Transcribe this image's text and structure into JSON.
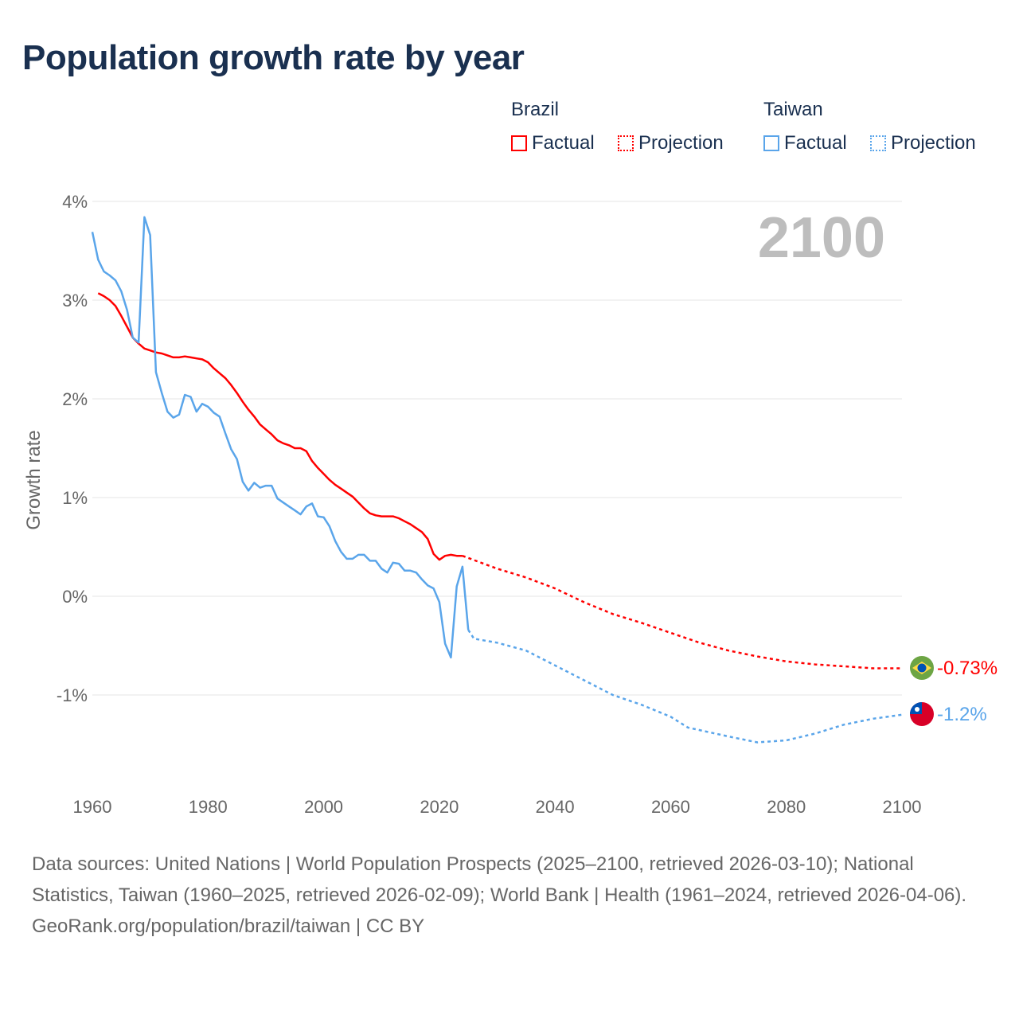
{
  "title": "Population growth rate by year",
  "legend": {
    "groups": [
      {
        "country": "Brazil",
        "factual": "Factual",
        "projection": "Projection",
        "color": "#ff0000"
      },
      {
        "country": "Taiwan",
        "factual": "Factual",
        "projection": "Projection",
        "color": "#5aa5ea"
      }
    ]
  },
  "year_label": "2100",
  "footer": {
    "sources": "Data sources: United Nations | World Population Prospects (2025–2100, retrieved 2026-03-10); National Statistics, Taiwan (1960–2025, retrieved 2026-02-09); World Bank | Health (1961–2024, retrieved 2026-04-06).",
    "credit": "GeoRank.org/population/brazil/taiwan | CC BY"
  },
  "chart_data": {
    "type": "line",
    "title": "Population growth rate by year",
    "xlabel": "",
    "ylabel": "Growth rate",
    "xlim": [
      1960,
      2100
    ],
    "ylim": [
      -1.8,
      4
    ],
    "xticks": [
      "1960",
      "1980",
      "2000",
      "2020",
      "2040",
      "2060",
      "2080",
      "2100"
    ],
    "xtick_values": [
      1960,
      1980,
      2000,
      2020,
      2040,
      2060,
      2080,
      2100
    ],
    "yticks": [
      "4%",
      "3%",
      "2%",
      "1%",
      "0%",
      "-1%"
    ],
    "ytick_values": [
      4,
      3,
      2,
      1,
      0,
      -1
    ],
    "grid": true,
    "series": [
      {
        "name": "Brazil",
        "color": "#ff0000",
        "end_label": "-0.73%",
        "factual": {
          "x": [
            1961,
            1962,
            1963,
            1964,
            1965,
            1966,
            1967,
            1968,
            1969,
            1970,
            1971,
            1972,
            1973,
            1974,
            1975,
            1976,
            1977,
            1978,
            1979,
            1980,
            1981,
            1982,
            1983,
            1984,
            1985,
            1986,
            1987,
            1988,
            1989,
            1990,
            1991,
            1992,
            1993,
            1994,
            1995,
            1996,
            1997,
            1998,
            1999,
            2000,
            2001,
            2002,
            2003,
            2004,
            2005,
            2006,
            2007,
            2008,
            2009,
            2010,
            2011,
            2012,
            2013,
            2014,
            2015,
            2016,
            2017,
            2018,
            2019,
            2020,
            2021,
            2022,
            2023,
            2024
          ],
          "y": [
            3.07,
            3.04,
            3.0,
            2.94,
            2.84,
            2.73,
            2.62,
            2.56,
            2.51,
            2.49,
            2.47,
            2.46,
            2.44,
            2.42,
            2.42,
            2.43,
            2.42,
            2.41,
            2.4,
            2.37,
            2.31,
            2.26,
            2.21,
            2.14,
            2.06,
            1.97,
            1.89,
            1.82,
            1.74,
            1.69,
            1.64,
            1.58,
            1.55,
            1.53,
            1.5,
            1.5,
            1.47,
            1.37,
            1.3,
            1.24,
            1.18,
            1.13,
            1.09,
            1.05,
            1.01,
            0.95,
            0.89,
            0.84,
            0.82,
            0.81,
            0.81,
            0.81,
            0.79,
            0.76,
            0.73,
            0.69,
            0.65,
            0.58,
            0.43,
            0.37,
            0.41,
            0.42,
            0.41,
            0.41
          ]
        },
        "projection": {
          "x": [
            2024,
            2030,
            2035,
            2040,
            2045,
            2050,
            2055,
            2060,
            2065,
            2070,
            2075,
            2080,
            2085,
            2090,
            2095,
            2100
          ],
          "y": [
            0.41,
            0.28,
            0.19,
            0.08,
            -0.06,
            -0.18,
            -0.27,
            -0.37,
            -0.47,
            -0.55,
            -0.61,
            -0.66,
            -0.69,
            -0.71,
            -0.73,
            -0.73
          ]
        }
      },
      {
        "name": "Taiwan",
        "color": "#5aa5ea",
        "end_label": "-1.2%",
        "factual": {
          "x": [
            1960,
            1961,
            1962,
            1963,
            1964,
            1965,
            1966,
            1967,
            1968,
            1969,
            1970,
            1971,
            1972,
            1973,
            1974,
            1975,
            1976,
            1977,
            1978,
            1979,
            1980,
            1981,
            1982,
            1983,
            1984,
            1985,
            1986,
            1987,
            1988,
            1989,
            1990,
            1991,
            1992,
            1993,
            1994,
            1995,
            1996,
            1997,
            1998,
            1999,
            2000,
            2001,
            2002,
            2003,
            2004,
            2005,
            2006,
            2007,
            2008,
            2009,
            2010,
            2011,
            2012,
            2013,
            2014,
            2015,
            2016,
            2017,
            2018,
            2019,
            2020,
            2021,
            2022,
            2023,
            2024,
            2025
          ],
          "y": [
            3.69,
            3.41,
            3.29,
            3.25,
            3.2,
            3.09,
            2.9,
            2.62,
            2.57,
            3.84,
            3.66,
            2.27,
            2.06,
            1.87,
            1.81,
            1.84,
            2.04,
            2.02,
            1.87,
            1.95,
            1.92,
            1.86,
            1.82,
            1.65,
            1.49,
            1.39,
            1.16,
            1.07,
            1.15,
            1.1,
            1.12,
            1.12,
            0.99,
            0.95,
            0.91,
            0.87,
            0.83,
            0.91,
            0.94,
            0.81,
            0.8,
            0.71,
            0.56,
            0.45,
            0.38,
            0.38,
            0.42,
            0.42,
            0.36,
            0.36,
            0.28,
            0.24,
            0.34,
            0.33,
            0.26,
            0.26,
            0.24,
            0.17,
            0.11,
            0.08,
            -0.06,
            -0.48,
            -0.62,
            0.1,
            0.3,
            -0.34
          ]
        },
        "projection": {
          "x": [
            2025,
            2026,
            2030,
            2035,
            2040,
            2045,
            2050,
            2055,
            2060,
            2063,
            2070,
            2075,
            2080,
            2085,
            2090,
            2095,
            2100
          ],
          "y": [
            -0.34,
            -0.43,
            -0.47,
            -0.55,
            -0.7,
            -0.85,
            -1.0,
            -1.1,
            -1.22,
            -1.33,
            -1.42,
            -1.48,
            -1.46,
            -1.39,
            -1.3,
            -1.24,
            -1.2
          ]
        }
      }
    ]
  }
}
